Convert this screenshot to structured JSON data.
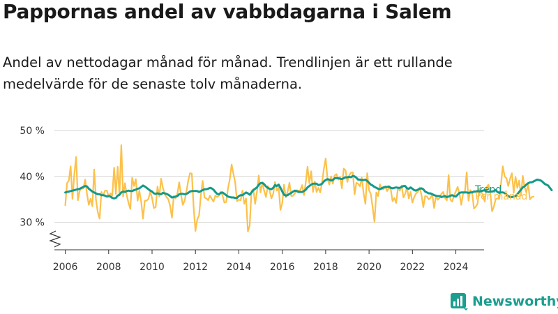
{
  "title": "Pappornas andel av vabbdagarna i Salem",
  "subtitle": "Andel av nettodagar månad för månad. Trendlinjen är ett rullande medelvärde för de senaste tolv månaderna.",
  "brand": {
    "name": "Newsworthy",
    "color": "#1a9e8f"
  },
  "chart_data": {
    "type": "line",
    "xlim": [
      2005.5,
      2025.3
    ],
    "ylim": [
      24,
      50
    ],
    "x_ticks": [
      "2006",
      "2008",
      "2010",
      "2012",
      "2014",
      "2016",
      "2018",
      "2020",
      "2022",
      "2024"
    ],
    "y_ticks": [
      "30 %",
      "40 %",
      "50 %"
    ],
    "y_tick_values": [
      30,
      40,
      50
    ],
    "axis_break": true,
    "grid": true,
    "start": 2006.0,
    "step": 0.08333,
    "series": [
      {
        "name": "Trend",
        "color": "#13998a",
        "values": [
          36.5,
          36.6,
          36.7,
          36.8,
          36.9,
          37.0,
          37.1,
          37.2,
          37.3,
          37.5,
          37.7,
          37.9,
          37.8,
          37.3,
          37.0,
          36.7,
          36.5,
          36.3,
          36.1,
          36.1,
          35.9,
          35.9,
          35.8,
          35.6,
          35.7,
          35.6,
          35.3,
          35.2,
          35.3,
          35.8,
          36.0,
          36.5,
          36.7,
          36.6,
          36.8,
          36.9,
          36.8,
          36.8,
          37.0,
          37.1,
          37.3,
          37.4,
          37.7,
          38.0,
          37.8,
          37.5,
          37.2,
          36.9,
          36.7,
          36.3,
          36.2,
          36.3,
          36.2,
          36.1,
          36.4,
          36.3,
          36.2,
          36.0,
          35.7,
          35.4,
          35.5,
          35.6,
          35.7,
          36.1,
          36.2,
          36.2,
          36.1,
          36.2,
          36.4,
          36.7,
          36.8,
          36.8,
          36.8,
          36.8,
          36.6,
          36.8,
          37.0,
          37.2,
          37.2,
          37.3,
          37.5,
          37.4,
          37.1,
          36.6,
          36.2,
          36.1,
          36.4,
          36.5,
          36.2,
          35.9,
          35.6,
          35.5,
          35.4,
          35.4,
          35.3,
          35.3,
          35.7,
          35.9,
          35.9,
          36.2,
          36.5,
          36.3,
          36.0,
          36.5,
          37.0,
          37.3,
          37.6,
          38.2,
          38.5,
          38.6,
          38.3,
          37.8,
          37.5,
          37.3,
          37.2,
          37.5,
          38.1,
          37.9,
          38.2,
          37.5,
          36.7,
          36.0,
          35.8,
          35.9,
          36.2,
          36.4,
          36.7,
          36.9,
          36.8,
          36.6,
          36.6,
          36.6,
          36.8,
          37.1,
          37.6,
          37.9,
          38.2,
          38.4,
          38.4,
          38.4,
          38.1,
          38.2,
          38.4,
          38.9,
          39.2,
          39.4,
          39.3,
          39.1,
          39.2,
          39.6,
          39.6,
          39.6,
          39.5,
          39.4,
          39.6,
          39.8,
          39.8,
          39.9,
          39.8,
          40.1,
          40.0,
          39.7,
          39.3,
          39.3,
          39.2,
          39.2,
          39.3,
          39.0,
          38.6,
          38.2,
          38.0,
          37.7,
          37.5,
          37.3,
          37.2,
          37.4,
          37.6,
          37.7,
          37.7,
          37.8,
          37.5,
          37.4,
          37.5,
          37.6,
          37.5,
          37.5,
          37.7,
          37.9,
          37.9,
          37.4,
          37.3,
          37.6,
          37.3,
          37.0,
          36.9,
          37.1,
          37.3,
          37.4,
          37.2,
          36.7,
          36.5,
          36.3,
          36.3,
          36.1,
          35.9,
          35.8,
          35.7,
          35.7,
          35.5,
          35.6,
          35.7,
          35.5,
          35.6,
          35.8,
          35.9,
          35.7,
          35.6,
          36.0,
          36.4,
          36.5,
          36.5,
          36.5,
          36.5,
          36.4,
          36.5,
          36.5,
          36.7,
          36.7,
          36.8,
          36.7,
          36.8,
          36.9,
          37.0,
          36.8,
          36.6,
          36.7,
          36.7,
          36.8,
          37.0,
          36.6,
          36.4,
          36.5,
          36.5,
          36.4,
          36.0,
          35.7,
          35.5,
          35.5,
          35.6,
          35.7,
          36.1,
          36.6,
          37.1,
          37.6,
          37.8,
          38.2,
          38.5,
          38.7,
          38.7,
          38.9,
          39.1,
          39.3,
          39.2,
          39.1,
          38.8,
          38.4,
          38.2,
          38.0,
          37.5,
          37.0
        ]
      },
      {
        "name": "Per månad",
        "color": "#fcc14b",
        "values": [
          33.7,
          38.5,
          39.1,
          42.2,
          35.1,
          40.4,
          44.2,
          34.8,
          36.9,
          37.3,
          37.4,
          39.3,
          36.2,
          33.8,
          35.1,
          33.5,
          41.5,
          34.9,
          32.2,
          30.8,
          36.6,
          35.8,
          36.9,
          36.9,
          35.6,
          36.3,
          35.8,
          41.9,
          36.2,
          42.1,
          35.9,
          46.8,
          35.6,
          38.5,
          35.9,
          34.2,
          32.9,
          39.7,
          37.9,
          39.4,
          34.7,
          36.9,
          34.5,
          30.8,
          34.7,
          34.7,
          35.1,
          36.7,
          35.3,
          33.1,
          33.3,
          37.8,
          35.6,
          39.5,
          37.5,
          36.1,
          35.5,
          35.0,
          33.6,
          31.0,
          35.7,
          35.2,
          36.2,
          38.7,
          36.0,
          33.8,
          34.7,
          36.7,
          39.0,
          40.7,
          40.6,
          33.3,
          28.1,
          30.6,
          31.5,
          35.9,
          39.0,
          35.4,
          35.2,
          34.8,
          35.8,
          35.1,
          34.5,
          35.8,
          35.5,
          35.8,
          36.7,
          35.8,
          34.3,
          34.4,
          37.4,
          39.4,
          42.6,
          40.5,
          38.7,
          34.6,
          34.9,
          34.8,
          36.9,
          34.0,
          35.2,
          28.0,
          29.3,
          36.9,
          37.2,
          34.0,
          36.7,
          40.2,
          36.5,
          38.6,
          36.9,
          35.5,
          37.9,
          36.9,
          35.2,
          36.2,
          38.8,
          36.9,
          37.6,
          32.7,
          34.2,
          38.2,
          35.4,
          36.7,
          38.6,
          35.7,
          35.8,
          36.3,
          37.0,
          36.9,
          37.0,
          38.1,
          35.9,
          38.7,
          42.1,
          38.5,
          41.1,
          36.6,
          38.9,
          36.6,
          37.5,
          36.5,
          38.6,
          41.6,
          43.9,
          39.5,
          38.2,
          40.0,
          38.4,
          40.2,
          40.5,
          39.3,
          39.9,
          37.4,
          41.7,
          41.3,
          38.8,
          40.2,
          40.8,
          40.9,
          36.1,
          38.6,
          38.4,
          37.8,
          39.7,
          36.3,
          34.0,
          40.7,
          37.0,
          36.1,
          33.2,
          30.1,
          36.5,
          35.7,
          38.3,
          37.3,
          37.2,
          37.8,
          36.8,
          37.5,
          37.2,
          34.6,
          35.3,
          34.2,
          37.6,
          36.9,
          38.0,
          35.4,
          36.2,
          37.6,
          35.2,
          36.6,
          34.3,
          35.5,
          36.3,
          36.6,
          37.6,
          35.9,
          33.3,
          35.7,
          35.6,
          35.0,
          35.3,
          36.1,
          33.1,
          35.7,
          34.9,
          35.3,
          36.2,
          36.6,
          35.3,
          34.8,
          40.3,
          34.9,
          34.5,
          35.8,
          36.7,
          37.7,
          36.3,
          33.8,
          36.2,
          36.6,
          40.9,
          34.7,
          37.0,
          36.5,
          33.0,
          33.4,
          34.0,
          37.3,
          36.7,
          35.9,
          34.5,
          37.6,
          38.2,
          36.7,
          32.4,
          33.4,
          35.0,
          35.2,
          35.1,
          38.4,
          42.2,
          40.0,
          39.6,
          37.9,
          39.5,
          40.7,
          36.4,
          39.9,
          37.5,
          39.1,
          35.8,
          40.1,
          37.7,
          36.5,
          38.3,
          35.0,
          35.5,
          35.6
        ]
      }
    ]
  }
}
